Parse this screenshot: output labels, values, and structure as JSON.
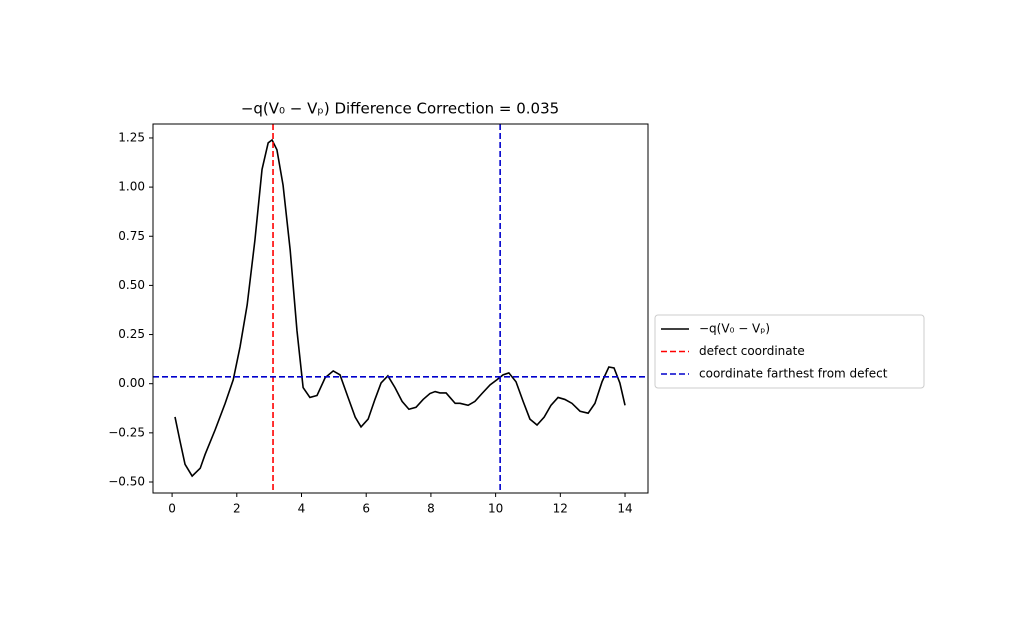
{
  "chart_data": {
    "type": "line",
    "title": "−q(V₀ − Vₚ) Difference Correction = 0.035",
    "xlim": [
      -0.59,
      14.71
    ],
    "ylim": [
      -0.556,
      1.321
    ],
    "xticks": [
      0,
      2,
      4,
      6,
      8,
      10,
      12,
      14
    ],
    "yticks": [
      {
        "value": -0.5,
        "label": "−0.50"
      },
      {
        "value": -0.25,
        "label": "−0.25"
      },
      {
        "value": 0,
        "label": "0.00"
      },
      {
        "value": 0.25,
        "label": "0.25"
      },
      {
        "value": 0.5,
        "label": "0.50"
      },
      {
        "value": 0.75,
        "label": "0.75"
      },
      {
        "value": 1,
        "label": "1.00"
      },
      {
        "value": 1.25,
        "label": "1.25"
      }
    ],
    "legend": "outside-right",
    "series": [
      {
        "name": "−q(V₀ − Vₚ)",
        "color": "#000000",
        "x": [
          0.09,
          0.25,
          0.4,
          0.62,
          0.87,
          1.02,
          1.33,
          1.64,
          1.89,
          2.1,
          2.32,
          2.56,
          2.78,
          2.97,
          3.09,
          3.24,
          3.43,
          3.65,
          3.86,
          4.05,
          4.26,
          4.48,
          4.73,
          4.98,
          5.19,
          5.44,
          5.66,
          5.84,
          6.06,
          6.27,
          6.46,
          6.67,
          6.89,
          7.11,
          7.32,
          7.54,
          7.76,
          7.97,
          8.13,
          8.28,
          8.47,
          8.59,
          8.75,
          8.9,
          9.15,
          9.36,
          9.58,
          9.83,
          10.04,
          10.23,
          10.41,
          10.63,
          10.85,
          11.06,
          11.28,
          11.5,
          11.71,
          11.93,
          12.14,
          12.36,
          12.61,
          12.86,
          13.07,
          13.29,
          13.5,
          13.66,
          13.84,
          14.0
        ],
        "values": [
          -0.169,
          -0.296,
          -0.41,
          -0.47,
          -0.43,
          -0.36,
          -0.235,
          -0.1,
          0.02,
          0.187,
          0.4,
          0.73,
          1.09,
          1.225,
          1.24,
          1.19,
          1.01,
          0.68,
          0.27,
          -0.02,
          -0.07,
          -0.06,
          0.03,
          0.065,
          0.045,
          -0.07,
          -0.17,
          -0.22,
          -0.18,
          -0.08,
          0.004,
          0.04,
          -0.02,
          -0.09,
          -0.13,
          -0.12,
          -0.08,
          -0.05,
          -0.04,
          -0.047,
          -0.047,
          -0.07,
          -0.1,
          -0.1,
          -0.11,
          -0.09,
          -0.05,
          -0.006,
          0.02,
          0.045,
          0.055,
          0.01,
          -0.09,
          -0.18,
          -0.21,
          -0.17,
          -0.11,
          -0.07,
          -0.08,
          -0.1,
          -0.14,
          -0.15,
          -0.1,
          0.01,
          0.085,
          0.08,
          0.004,
          -0.11
        ]
      }
    ],
    "reference_lines": [
      {
        "name": "defect coordinate",
        "color": "#ff0000",
        "x": 3.12
      },
      {
        "name": "coordinate farthest from defect",
        "color": "#0000cc",
        "x": 10.14,
        "y": 0.035
      }
    ]
  }
}
